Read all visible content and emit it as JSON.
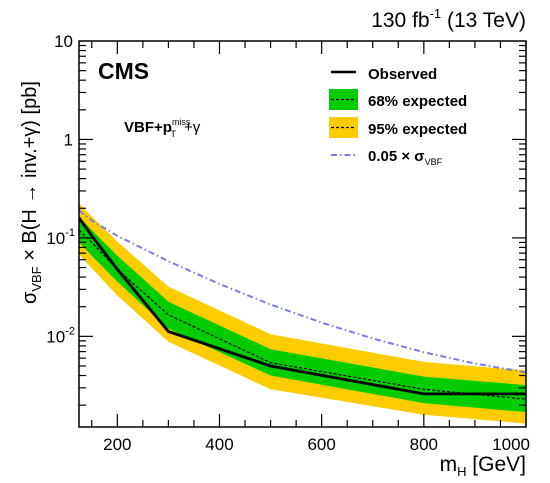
{
  "header": {
    "lumi_label": "130 fb",
    "lumi_exp": "-1",
    "energy_label": "(13 TeV)"
  },
  "chart_data": {
    "type": "line",
    "experiment_label": "CMS",
    "channel_label": {
      "main": "VBF+p",
      "sub": "T",
      "sup": "miss",
      "tail": "+γ"
    },
    "x_axis": {
      "label": "m",
      "label_sub": "H",
      "label_tail": " [GeV]",
      "range": [
        125,
        1000
      ],
      "ticks": [
        200,
        400,
        600,
        800,
        1000
      ],
      "tick_labels": [
        "200",
        "400",
        "600",
        "800",
        "1000"
      ]
    },
    "y_axis": {
      "label_prefix": "σ",
      "label_sub": "VBF",
      "label_tail": " × B(H → inv.+γ) [pb]",
      "scale": "log",
      "range": [
        0.0012,
        10
      ],
      "major_ticks": [
        0.01,
        0.1,
        1,
        10
      ],
      "major_tick_labels": [
        {
          "base": "10",
          "exp": "-2"
        },
        {
          "base": "10",
          "exp": "-1"
        },
        {
          "base": "1",
          "exp": ""
        },
        {
          "base": "10",
          "exp": ""
        }
      ]
    },
    "legend": {
      "position": "top-right",
      "entries": [
        {
          "label": "Observed",
          "style": "solid-black"
        },
        {
          "label": "68% expected",
          "style": "green-band-dashed"
        },
        {
          "label": "95% expected",
          "style": "yellow-band-dashed"
        },
        {
          "label": "0.05 × σ",
          "label_sub": "VBF",
          "style": "dashdot-blue"
        }
      ]
    },
    "colors": {
      "band95": "#ffcc00",
      "band68": "#00cc00",
      "observed": "#000000",
      "expected": "#000000",
      "theory": "#7b7be8"
    },
    "series": [
      {
        "name": "Observed",
        "x": [
          125,
          150,
          200,
          300,
          500,
          800,
          1000
        ],
        "y": [
          0.16,
          0.105,
          0.048,
          0.0112,
          0.005,
          0.0026,
          0.0026
        ]
      },
      {
        "name": "68% expected",
        "x": [
          125,
          150,
          200,
          300,
          500,
          800,
          1000
        ],
        "y": [
          0.12,
          0.09,
          0.048,
          0.0165,
          0.0054,
          0.0029,
          0.0023
        ],
        "band_low": [
          0.09,
          0.066,
          0.036,
          0.012,
          0.004,
          0.0021,
          0.0017
        ],
        "band_high": [
          0.165,
          0.12,
          0.066,
          0.0225,
          0.0074,
          0.0039,
          0.0032
        ]
      },
      {
        "name": "95% expected",
        "band_low": [
          0.068,
          0.049,
          0.026,
          0.0088,
          0.0029,
          0.0016,
          0.0013
        ],
        "band_high": [
          0.225,
          0.165,
          0.092,
          0.032,
          0.0105,
          0.0055,
          0.0045
        ]
      },
      {
        "name": "0.05 × σVBF",
        "x": [
          125,
          150,
          200,
          300,
          400,
          500,
          600,
          700,
          800,
          900,
          1000
        ],
        "y": [
          0.19,
          0.15,
          0.105,
          0.058,
          0.034,
          0.021,
          0.0138,
          0.0095,
          0.0069,
          0.0053,
          0.0043
        ]
      }
    ]
  }
}
